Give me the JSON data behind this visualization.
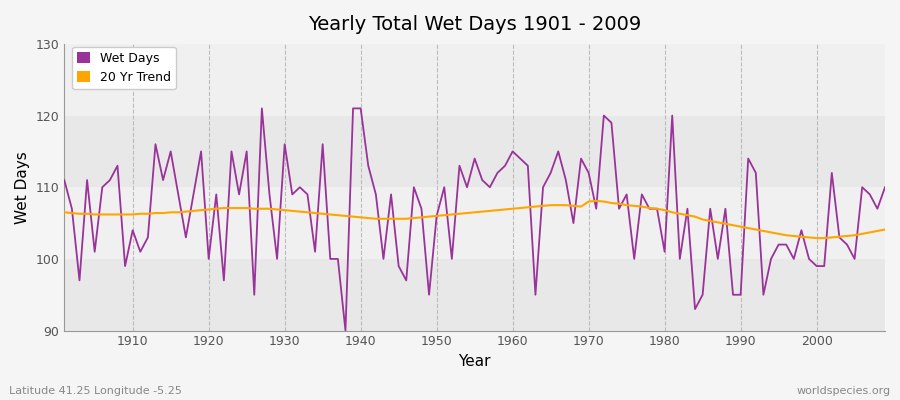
{
  "title": "Yearly Total Wet Days 1901 - 2009",
  "xlabel": "Year",
  "ylabel": "Wet Days",
  "footer_left": "Latitude 41.25 Longitude -5.25",
  "footer_right": "worldspecies.org",
  "ylim": [
    90,
    130
  ],
  "yticks": [
    90,
    100,
    110,
    120,
    130
  ],
  "background_color": "#f5f5f5",
  "plot_bg_color": "#ffffff",
  "band_color_dark": "#e8e8e8",
  "band_color_light": "#f0f0f0",
  "line_color_wet": "#993399",
  "line_color_trend": "#ffa500",
  "legend_wet": "Wet Days",
  "legend_trend": "20 Yr Trend",
  "years": [
    1901,
    1902,
    1903,
    1904,
    1905,
    1906,
    1907,
    1908,
    1909,
    1910,
    1911,
    1912,
    1913,
    1914,
    1915,
    1916,
    1917,
    1918,
    1919,
    1920,
    1921,
    1922,
    1923,
    1924,
    1925,
    1926,
    1927,
    1928,
    1929,
    1930,
    1931,
    1932,
    1933,
    1934,
    1935,
    1936,
    1937,
    1938,
    1939,
    1940,
    1941,
    1942,
    1943,
    1944,
    1945,
    1946,
    1947,
    1948,
    1949,
    1950,
    1951,
    1952,
    1953,
    1954,
    1955,
    1956,
    1957,
    1958,
    1959,
    1960,
    1961,
    1962,
    1963,
    1964,
    1965,
    1966,
    1967,
    1968,
    1969,
    1970,
    1971,
    1972,
    1973,
    1974,
    1975,
    1976,
    1977,
    1978,
    1979,
    1980,
    1981,
    1982,
    1983,
    1984,
    1985,
    1986,
    1987,
    1988,
    1989,
    1990,
    1991,
    1992,
    1993,
    1994,
    1995,
    1996,
    1997,
    1998,
    1999,
    2000,
    2001,
    2002,
    2003,
    2004,
    2005,
    2006,
    2007,
    2008,
    2009
  ],
  "wet_days": [
    111,
    107,
    97,
    111,
    101,
    110,
    111,
    113,
    99,
    104,
    101,
    103,
    116,
    111,
    115,
    109,
    103,
    109,
    115,
    100,
    109,
    97,
    115,
    109,
    115,
    95,
    121,
    109,
    100,
    116,
    109,
    110,
    109,
    101,
    116,
    100,
    100,
    90,
    121,
    121,
    113,
    109,
    100,
    109,
    99,
    97,
    110,
    107,
    95,
    106,
    110,
    100,
    113,
    110,
    114,
    111,
    110,
    112,
    113,
    115,
    114,
    113,
    95,
    110,
    112,
    115,
    111,
    105,
    114,
    112,
    107,
    120,
    119,
    107,
    109,
    100,
    109,
    107,
    107,
    101,
    120,
    100,
    107,
    93,
    95,
    107,
    100,
    107,
    95,
    95,
    114,
    112,
    95,
    100,
    102,
    102,
    100,
    104,
    100,
    99,
    99,
    112,
    103,
    102,
    100,
    110,
    109,
    107,
    110
  ],
  "trend_years": [
    1901,
    1902,
    1903,
    1904,
    1905,
    1906,
    1907,
    1908,
    1909,
    1910,
    1911,
    1912,
    1913,
    1914,
    1915,
    1916,
    1917,
    1918,
    1919,
    1920,
    1921,
    1922,
    1923,
    1924,
    1925,
    1926,
    1927,
    1928,
    1929,
    1930,
    1931,
    1932,
    1933,
    1934,
    1935,
    1936,
    1937,
    1938,
    1939,
    1940,
    1941,
    1942,
    1943,
    1944,
    1945,
    1946,
    1947,
    1948,
    1949,
    1950,
    1951,
    1952,
    1953,
    1954,
    1955,
    1956,
    1957,
    1958,
    1959,
    1960,
    1961,
    1962,
    1963,
    1964,
    1965,
    1966,
    1967,
    1968,
    1969,
    1970,
    1971,
    1972,
    1973,
    1974,
    1975,
    1976,
    1977,
    1978,
    1979,
    1980,
    1981,
    1982,
    1983,
    1984,
    1985,
    1986,
    1987,
    1988,
    1989,
    1990,
    1991,
    1992,
    1993,
    1994,
    1995,
    1996,
    1997,
    1998,
    1999,
    2000,
    2001,
    2002,
    2003,
    2004,
    2005,
    2006,
    2007,
    2008,
    2009
  ],
  "trend_values": [
    106.5,
    106.4,
    106.3,
    106.3,
    106.2,
    106.2,
    106.2,
    106.2,
    106.2,
    106.2,
    106.3,
    106.3,
    106.4,
    106.4,
    106.5,
    106.5,
    106.6,
    106.7,
    106.8,
    106.9,
    107.0,
    107.1,
    107.1,
    107.1,
    107.1,
    107.0,
    107.0,
    107.0,
    106.9,
    106.8,
    106.7,
    106.6,
    106.5,
    106.4,
    106.3,
    106.2,
    106.1,
    106.0,
    105.9,
    105.8,
    105.7,
    105.6,
    105.6,
    105.6,
    105.6,
    105.6,
    105.7,
    105.8,
    105.9,
    106.0,
    106.1,
    106.2,
    106.3,
    106.4,
    106.5,
    106.6,
    106.7,
    106.8,
    106.9,
    107.0,
    107.1,
    107.2,
    107.3,
    107.4,
    107.5,
    107.5,
    107.5,
    107.4,
    107.3,
    108.0,
    108.1,
    108.0,
    107.8,
    107.7,
    107.5,
    107.4,
    107.3,
    107.1,
    107.0,
    106.8,
    106.5,
    106.3,
    106.1,
    105.9,
    105.5,
    105.3,
    105.1,
    104.9,
    104.7,
    104.5,
    104.3,
    104.1,
    103.9,
    103.7,
    103.5,
    103.3,
    103.2,
    103.1,
    103.0,
    102.9,
    102.9,
    103.0,
    103.1,
    103.2,
    103.3,
    103.5,
    103.7,
    103.9,
    104.1
  ]
}
